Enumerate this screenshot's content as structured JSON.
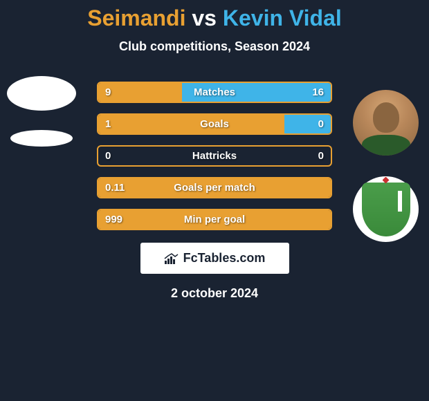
{
  "title": {
    "player1": "Seimandi",
    "vs": "vs",
    "player2": "Kevin Vidal",
    "player1_color": "#e8a032",
    "vs_color": "#ffffff",
    "player2_color": "#3fb4e8"
  },
  "subtitle": "Club competitions, Season 2024",
  "stats": [
    {
      "label": "Matches",
      "left_value": "9",
      "right_value": "16",
      "left_pct": 36,
      "right_pct": 64,
      "left_color": "#e8a032",
      "right_color": "#3fb4e8",
      "border_color": "#e8a032"
    },
    {
      "label": "Goals",
      "left_value": "1",
      "right_value": "0",
      "left_pct": 80,
      "right_pct": 20,
      "left_color": "#e8a032",
      "right_color": "#3fb4e8",
      "border_color": "#e8a032"
    },
    {
      "label": "Hattricks",
      "left_value": "0",
      "right_value": "0",
      "left_pct": 0,
      "right_pct": 0,
      "left_color": "#e8a032",
      "right_color": "#3fb4e8",
      "border_color": "#e8a032"
    },
    {
      "label": "Goals per match",
      "left_value": "0.11",
      "right_value": "",
      "left_pct": 100,
      "right_pct": 0,
      "left_color": "#e8a032",
      "right_color": "#3fb4e8",
      "border_color": "#e8a032"
    },
    {
      "label": "Min per goal",
      "left_value": "999",
      "right_value": "",
      "left_pct": 100,
      "right_pct": 0,
      "left_color": "#e8a032",
      "right_color": "#3fb4e8",
      "border_color": "#e8a032"
    }
  ],
  "brand": {
    "name": "FcTables.com",
    "icon_color": "#1a2332"
  },
  "date": "2 october 2024",
  "colors": {
    "background": "#1a2332",
    "text": "#ffffff"
  }
}
